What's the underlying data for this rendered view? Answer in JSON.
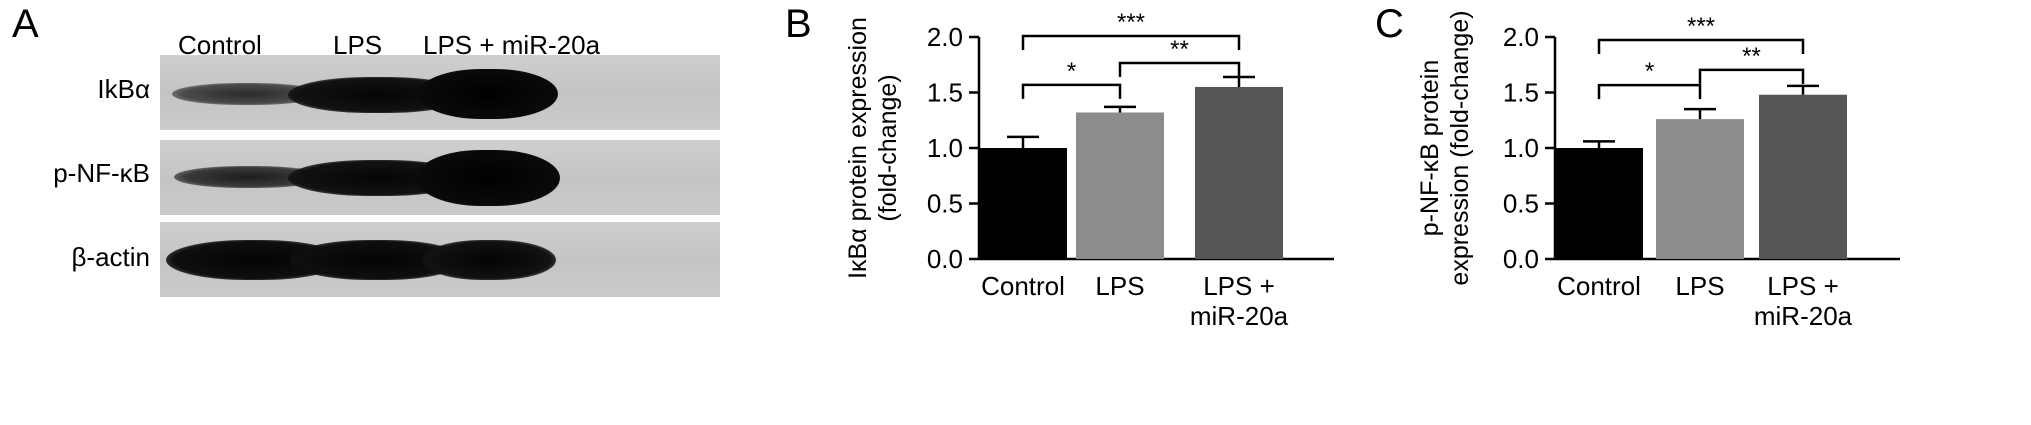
{
  "panels": {
    "a": {
      "letter": "A",
      "lanes": [
        "Control",
        "LPS",
        "LPS + miR-20a"
      ],
      "rows": [
        "IkBα",
        "p-NF-κB",
        "β-actin"
      ]
    },
    "b": {
      "letter": "B"
    },
    "c": {
      "letter": "C"
    }
  },
  "chart_data": [
    {
      "type": "bar",
      "categories": [
        "Control",
        "LPS",
        "LPS +\nmiR-20a"
      ],
      "values": [
        1.0,
        1.32,
        1.55
      ],
      "errors": [
        0.1,
        0.05,
        0.09
      ],
      "bar_colors": [
        "#000000",
        "#8c8c8c",
        "#555555"
      ],
      "ylabel": [
        "IκBα protein expression",
        "(fold-change)"
      ],
      "ylim": [
        0.0,
        2.0
      ],
      "yticks": [
        "0.0",
        "0.5",
        "1.0",
        "1.5",
        "2.0"
      ],
      "significance": [
        {
          "from": 0,
          "to": 1,
          "label": "*"
        },
        {
          "from": 1,
          "to": 2,
          "label": "**"
        },
        {
          "from": 0,
          "to": 2,
          "label": "***"
        }
      ]
    },
    {
      "type": "bar",
      "categories": [
        "Control",
        "LPS",
        "LPS +\nmiR-20a"
      ],
      "values": [
        1.0,
        1.26,
        1.48
      ],
      "errors": [
        0.06,
        0.09,
        0.08
      ],
      "bar_colors": [
        "#000000",
        "#8c8c8c",
        "#555555"
      ],
      "ylabel": [
        "p-NF-κB protein",
        "expression  (fold-change)"
      ],
      "ylim": [
        0.0,
        2.0
      ],
      "yticks": [
        "0.0",
        "0.5",
        "1.0",
        "1.5",
        "2.0"
      ],
      "significance": [
        {
          "from": 0,
          "to": 1,
          "label": "*"
        },
        {
          "from": 1,
          "to": 2,
          "label": "**"
        },
        {
          "from": 0,
          "to": 2,
          "label": "***"
        }
      ]
    }
  ]
}
